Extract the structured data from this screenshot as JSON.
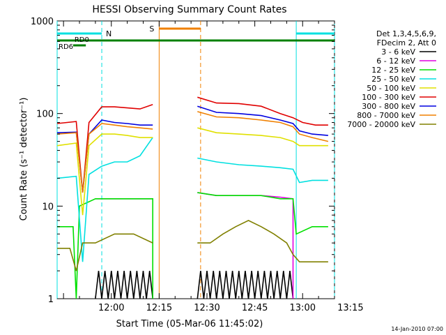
{
  "chart_data": {
    "type": "line",
    "title": "HESSI Observing Summary Count Rates",
    "xlabel": "Start Time (05-Mar-06 11:45:02)",
    "ylabel": "Count Rate (s⁻¹ detector⁻¹)",
    "yscale": "log",
    "ylim": [
      1,
      1000
    ],
    "xlim_minutes_after_start": [
      -2,
      85
    ],
    "y_tick_labels": [
      "1",
      "10",
      "100",
      "1000"
    ],
    "x_tick_labels": [
      "12:00",
      "12:15",
      "12:30",
      "12:45",
      "13:00",
      "13:15"
    ],
    "x_tick_minutes_after_start": [
      15,
      30,
      45,
      60,
      75,
      90
    ],
    "legend": {
      "placement": "right",
      "header": [
        "Det 1,3,4,5,6,9,",
        "FDecim 2, Att 0"
      ]
    },
    "series": [
      {
        "name": "3 - 6 keV",
        "color": "#000000",
        "segments": [
          [
            [
              10,
              1
            ],
            [
              11,
              2
            ],
            [
              12,
              1
            ],
            [
              13,
              2
            ],
            [
              14,
              1
            ],
            [
              15,
              2
            ],
            [
              16,
              1
            ],
            [
              17,
              2
            ],
            [
              18,
              1
            ],
            [
              19,
              2
            ],
            [
              20,
              1
            ],
            [
              21,
              2
            ],
            [
              22,
              1
            ],
            [
              23,
              2
            ],
            [
              24,
              1
            ],
            [
              25,
              2
            ],
            [
              26,
              1
            ],
            [
              27,
              2
            ],
            [
              28,
              1
            ]
          ],
          [
            [
              42,
              1
            ],
            [
              43,
              2
            ],
            [
              44,
              1
            ],
            [
              45,
              2
            ],
            [
              46,
              1
            ],
            [
              47,
              2
            ],
            [
              48,
              1
            ],
            [
              49,
              2
            ],
            [
              50,
              1
            ],
            [
              51,
              2
            ],
            [
              52,
              1
            ],
            [
              53,
              2
            ],
            [
              54,
              1
            ],
            [
              55,
              2
            ],
            [
              56,
              1
            ],
            [
              57,
              2
            ],
            [
              58,
              1
            ],
            [
              59,
              2
            ],
            [
              60,
              1
            ],
            [
              61,
              2
            ],
            [
              62,
              1
            ],
            [
              63,
              2
            ],
            [
              64,
              1
            ],
            [
              65,
              2
            ],
            [
              66,
              1
            ],
            [
              67,
              2
            ],
            [
              68,
              1
            ],
            [
              69,
              2
            ],
            [
              70,
              1
            ],
            [
              71,
              2
            ],
            [
              72,
              1
            ]
          ]
        ]
      },
      {
        "name": "6 - 12 keV",
        "color": "#e000e0",
        "segments": [
          [
            [
              10,
              12
            ],
            [
              28,
              12
            ]
          ],
          [
            [
              42,
              14
            ],
            [
              48,
              13
            ],
            [
              55,
              13
            ],
            [
              62,
              13
            ],
            [
              68,
              12.5
            ],
            [
              72,
              12
            ],
            [
              72,
              1
            ]
          ]
        ]
      },
      {
        "name": "12 - 25 keV",
        "color": "#00e000",
        "segments": [
          [
            [
              -2,
              6
            ],
            [
              3,
              6
            ],
            [
              4,
              1
            ],
            [
              5,
              10
            ],
            [
              10,
              12
            ],
            [
              14,
              12
            ],
            [
              20,
              12
            ],
            [
              28,
              12
            ],
            [
              28,
              1
            ]
          ],
          [
            [
              42,
              14
            ],
            [
              48,
              13
            ],
            [
              55,
              13
            ],
            [
              62,
              13
            ],
            [
              68,
              12
            ],
            [
              72,
              12
            ],
            [
              73,
              5
            ],
            [
              78,
              6
            ],
            [
              83,
              6
            ]
          ]
        ]
      },
      {
        "name": "25 - 50 keV",
        "color": "#00e0e0",
        "segments": [
          [
            [
              -2,
              20
            ],
            [
              4,
              21
            ],
            [
              6,
              2.5
            ],
            [
              8,
              22
            ],
            [
              12,
              27
            ],
            [
              16,
              30
            ],
            [
              20,
              30
            ],
            [
              24,
              35
            ],
            [
              28,
              55
            ]
          ],
          [
            [
              42,
              33
            ],
            [
              48,
              30
            ],
            [
              55,
              28
            ],
            [
              62,
              27
            ],
            [
              68,
              26
            ],
            [
              72,
              25
            ],
            [
              74,
              18
            ],
            [
              78,
              19
            ],
            [
              83,
              19
            ]
          ]
        ]
      },
      {
        "name": "50 - 100 keV",
        "color": "#e0e000",
        "segments": [
          [
            [
              -2,
              45
            ],
            [
              4,
              48
            ],
            [
              6,
              8
            ],
            [
              8,
              45
            ],
            [
              12,
              60
            ],
            [
              16,
              60
            ],
            [
              20,
              58
            ],
            [
              24,
              55
            ],
            [
              28,
              55
            ]
          ],
          [
            [
              42,
              70
            ],
            [
              48,
              62
            ],
            [
              55,
              60
            ],
            [
              62,
              58
            ],
            [
              68,
              55
            ],
            [
              72,
              50
            ],
            [
              74,
              45
            ],
            [
              78,
              45
            ],
            [
              83,
              45
            ]
          ]
        ]
      },
      {
        "name": "100 - 300 keV",
        "color": "#e00000",
        "segments": [
          [
            [
              -2,
              78
            ],
            [
              4,
              82
            ],
            [
              6,
              14
            ],
            [
              8,
              80
            ],
            [
              12,
              118
            ],
            [
              16,
              118
            ],
            [
              20,
              115
            ],
            [
              24,
              112
            ],
            [
              28,
              125
            ]
          ],
          [
            [
              42,
              150
            ],
            [
              48,
              130
            ],
            [
              55,
              128
            ],
            [
              62,
              120
            ],
            [
              68,
              100
            ],
            [
              72,
              90
            ],
            [
              75,
              80
            ],
            [
              79,
              75
            ],
            [
              83,
              75
            ]
          ]
        ]
      },
      {
        "name": "300 - 800 keV",
        "color": "#0000e0",
        "segments": [
          [
            [
              -2,
              62
            ],
            [
              4,
              63
            ],
            [
              6,
              14
            ],
            [
              8,
              60
            ],
            [
              12,
              85
            ],
            [
              16,
              80
            ],
            [
              20,
              78
            ],
            [
              24,
              75
            ],
            [
              28,
              75
            ]
          ],
          [
            [
              42,
              120
            ],
            [
              48,
              103
            ],
            [
              55,
              100
            ],
            [
              62,
              95
            ],
            [
              68,
              85
            ],
            [
              72,
              78
            ],
            [
              74,
              65
            ],
            [
              78,
              60
            ],
            [
              83,
              58
            ]
          ]
        ]
      },
      {
        "name": "800 - 7000 keV",
        "color": "#f08000",
        "segments": [
          [
            [
              -2,
              60
            ],
            [
              4,
              62
            ],
            [
              6,
              14
            ],
            [
              8,
              60
            ],
            [
              12,
              78
            ],
            [
              16,
              75
            ],
            [
              20,
              72
            ],
            [
              24,
              70
            ],
            [
              28,
              68
            ]
          ],
          [
            [
              42,
              105
            ],
            [
              48,
              92
            ],
            [
              55,
              90
            ],
            [
              62,
              85
            ],
            [
              68,
              80
            ],
            [
              72,
              72
            ],
            [
              74,
              60
            ],
            [
              78,
              55
            ],
            [
              83,
              50
            ]
          ]
        ]
      },
      {
        "name": "7000 - 20000 keV",
        "color": "#808000",
        "segments": [
          [
            [
              -2,
              3.5
            ],
            [
              2,
              3.5
            ],
            [
              4,
              2
            ],
            [
              6,
              4
            ],
            [
              10,
              4
            ],
            [
              16,
              5
            ],
            [
              22,
              5
            ],
            [
              28,
              4
            ]
          ],
          [
            [
              42,
              4
            ],
            [
              46,
              4
            ],
            [
              50,
              5
            ],
            [
              54,
              6
            ],
            [
              58,
              7
            ],
            [
              62,
              6
            ],
            [
              66,
              5
            ],
            [
              70,
              4
            ],
            [
              72,
              3
            ],
            [
              74,
              2.5
            ],
            [
              78,
              2.5
            ],
            [
              83,
              2.5
            ]
          ]
        ]
      }
    ],
    "annotations": {
      "night_label": "N",
      "saa_label": "S",
      "rd_labels": [
        "RD6",
        "RD0"
      ],
      "night_intervals_minutes": [
        [
          -2,
          12
        ],
        [
          73,
          85
        ]
      ],
      "saa_interval_minutes": [
        30,
        43
      ],
      "rd0_interval_minutes": [
        -2,
        85
      ],
      "rd6_interval_minutes": [
        3,
        7
      ],
      "gap_marker_minutes": [
        28,
        42
      ]
    },
    "colors": {
      "night": "#00e0e0",
      "saa": "#f08000",
      "rd": "#008000"
    }
  },
  "footer_date": "14-Jan-2010 07:00"
}
